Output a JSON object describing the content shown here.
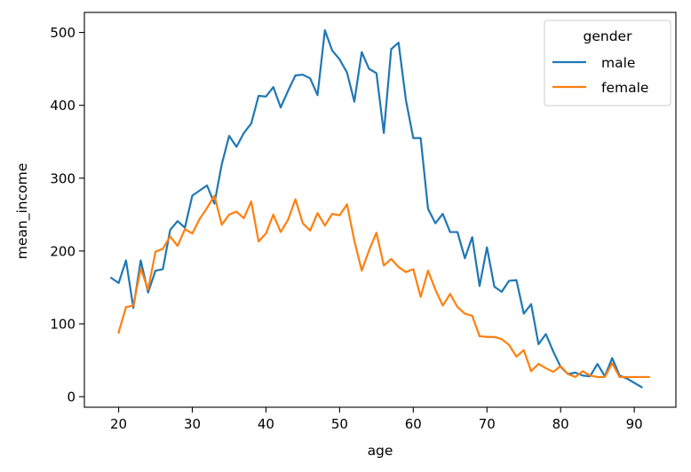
{
  "chart_data": {
    "type": "line",
    "xlabel": "age",
    "ylabel": "mean_income",
    "xlim": [
      15.35,
      95.65
    ],
    "ylim": [
      -14.5,
      527.5
    ],
    "xticks": [
      20,
      30,
      40,
      50,
      60,
      70,
      80,
      90
    ],
    "yticks": [
      0,
      100,
      200,
      300,
      400,
      500
    ],
    "grid": false,
    "legend": {
      "title": "gender",
      "placement": "top-right"
    },
    "series": [
      {
        "name": "male",
        "color": "#1f77b4",
        "x": [
          19,
          20,
          21,
          22,
          23,
          24,
          25,
          26,
          27,
          28,
          29,
          30,
          31,
          32,
          33,
          34,
          35,
          36,
          37,
          38,
          39,
          40,
          41,
          42,
          43,
          44,
          45,
          46,
          47,
          48,
          49,
          50,
          51,
          52,
          53,
          54,
          55,
          56,
          57,
          58,
          59,
          60,
          61,
          62,
          63,
          64,
          65,
          66,
          67,
          68,
          69,
          70,
          71,
          72,
          73,
          74,
          75,
          76,
          77,
          78,
          79,
          80,
          81,
          82,
          83,
          84,
          85,
          86,
          87,
          88,
          89,
          90,
          91
        ],
        "y": [
          163,
          156,
          187,
          122,
          187,
          143,
          173,
          175,
          229,
          241,
          232,
          276,
          283,
          290,
          265,
          319,
          358,
          343,
          362,
          375,
          413,
          412,
          425,
          397,
          420,
          441,
          442,
          437,
          414,
          503,
          475,
          463,
          445,
          405,
          473,
          450,
          444,
          362,
          477,
          486,
          407,
          355,
          355,
          258,
          238,
          251,
          226,
          226,
          190,
          219,
          152,
          205,
          151,
          144,
          159,
          160,
          114,
          127,
          72,
          86,
          62,
          41,
          31,
          33,
          29,
          28,
          45,
          28,
          53,
          29,
          25,
          19,
          13
        ]
      },
      {
        "name": "female",
        "color": "#ff7f0e",
        "x": [
          20,
          21,
          22,
          23,
          24,
          25,
          26,
          27,
          28,
          29,
          30,
          31,
          32,
          33,
          34,
          35,
          36,
          37,
          38,
          39,
          40,
          41,
          42,
          43,
          44,
          45,
          46,
          47,
          48,
          49,
          50,
          51,
          52,
          53,
          54,
          55,
          56,
          57,
          58,
          59,
          60,
          61,
          62,
          63,
          64,
          65,
          66,
          67,
          68,
          69,
          70,
          71,
          72,
          73,
          74,
          75,
          76,
          77,
          78,
          79,
          80,
          81,
          82,
          83,
          84,
          85,
          86,
          87,
          88,
          89,
          90,
          91,
          92
        ],
        "y": [
          88,
          123,
          125,
          176,
          147,
          199,
          203,
          220,
          207,
          230,
          224,
          244,
          259,
          276,
          236,
          250,
          254,
          245,
          268,
          213,
          224,
          250,
          226,
          243,
          271,
          238,
          228,
          252,
          235,
          251,
          249,
          264,
          214,
          173,
          201,
          225,
          180,
          189,
          178,
          171,
          175,
          137,
          173,
          147,
          125,
          141,
          123,
          114,
          111,
          83,
          82,
          82,
          79,
          71,
          55,
          64,
          35,
          45,
          39,
          34,
          42,
          31,
          27,
          35,
          29,
          27,
          27,
          46,
          27,
          27,
          27,
          27,
          27
        ]
      }
    ]
  }
}
